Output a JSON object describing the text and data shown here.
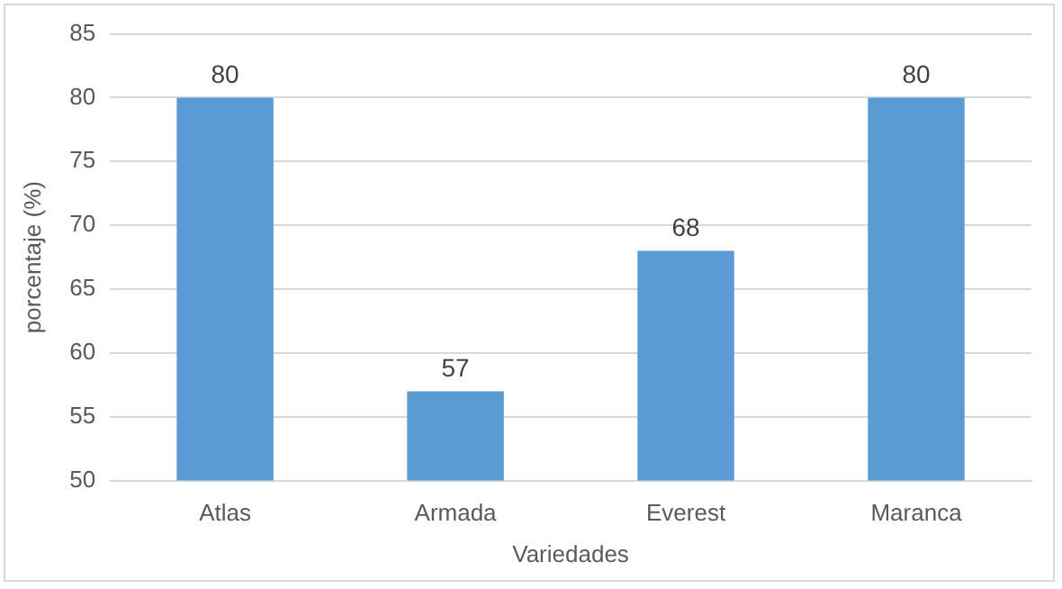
{
  "chart_data": {
    "type": "bar",
    "xlabel": "Variedades",
    "ylabel": "porcentaje (%)",
    "categories": [
      "Atlas",
      "Armada",
      "Everest",
      "Maranca"
    ],
    "values": [
      80,
      57,
      68,
      80
    ],
    "color": "#5b9bd5",
    "ylim": [
      50,
      85
    ],
    "yticks": [
      50,
      55,
      60,
      65,
      70,
      75,
      80,
      85
    ],
    "grid": "y",
    "data_labels": true,
    "legend": false
  }
}
